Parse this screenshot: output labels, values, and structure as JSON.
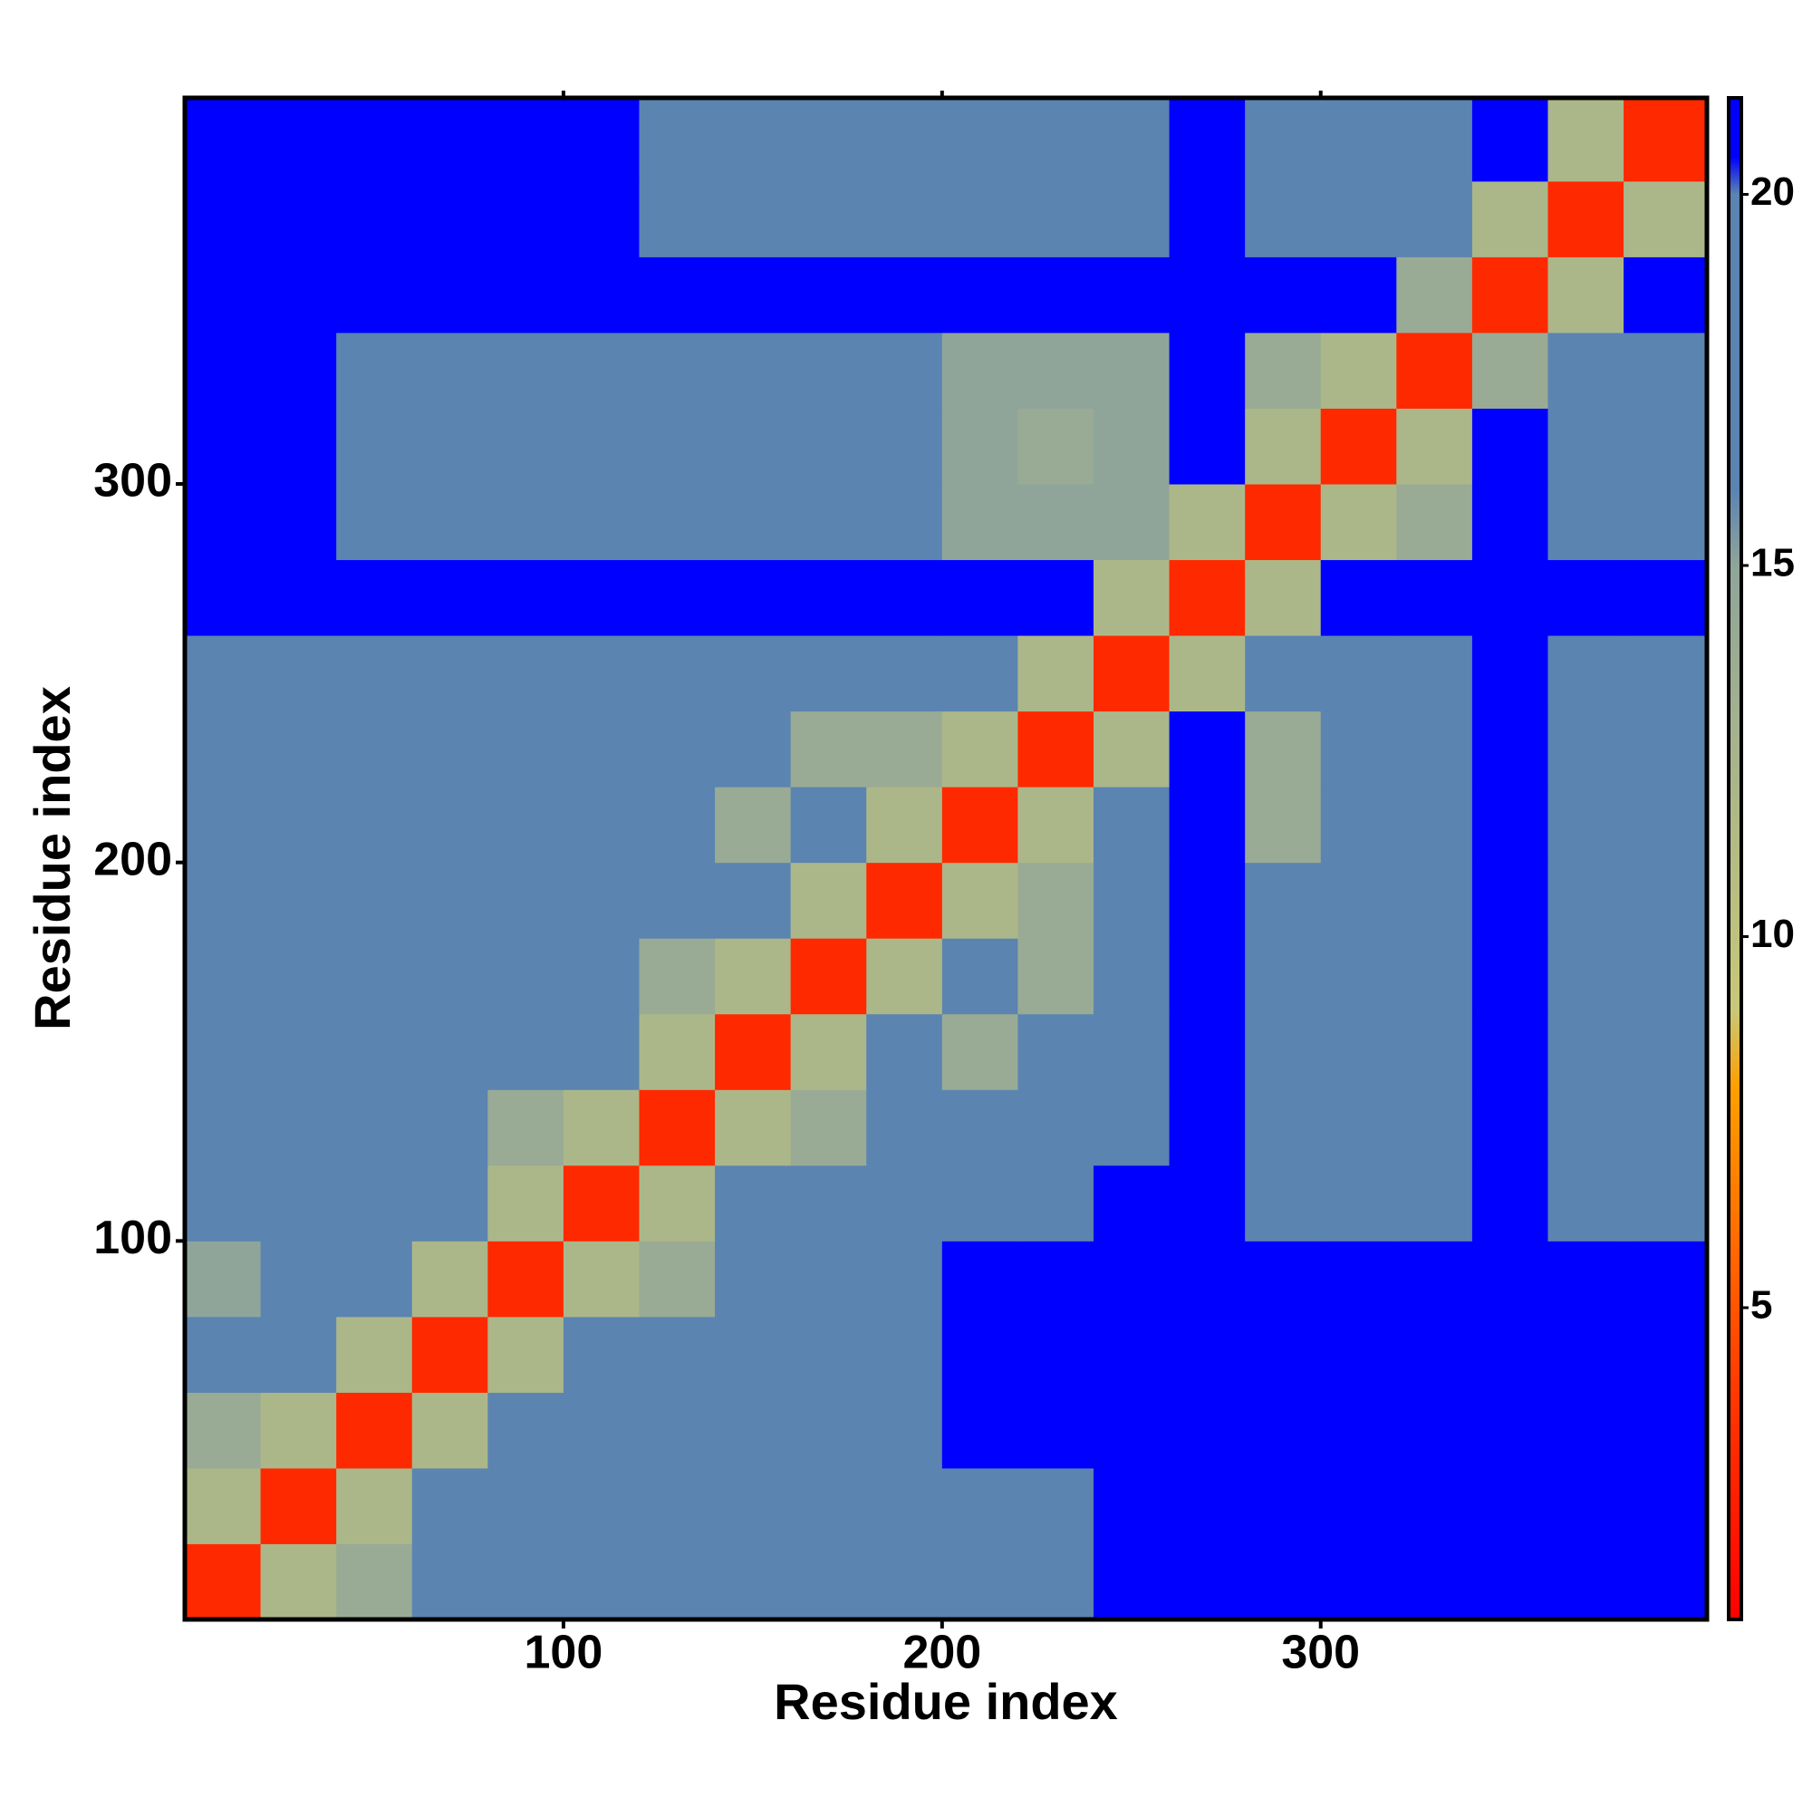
{
  "chart_data": {
    "type": "heatmap",
    "x_label": "Residue index",
    "y_label": "Residue index",
    "bins": [
      0,
      20,
      40,
      60,
      80,
      100,
      120,
      140,
      160,
      180,
      200,
      220,
      240,
      260,
      280,
      300,
      320,
      340,
      360,
      380,
      402
    ],
    "xlim": [
      0,
      402
    ],
    "ylim": [
      0,
      402
    ],
    "xticks": [
      100,
      200,
      300
    ],
    "yticks": [
      100,
      200,
      300
    ],
    "clim": [
      0.8,
      21.3
    ],
    "cticks": [
      5,
      10,
      15,
      20
    ],
    "colorscale": [
      [
        0.8,
        "#ff0000"
      ],
      [
        4,
        "#ff3c00"
      ],
      [
        8,
        "#ffa000"
      ],
      [
        9,
        "#c8c878"
      ],
      [
        15,
        "#8fa59a"
      ],
      [
        16,
        "#5b84b1"
      ],
      [
        20,
        "#5b84b1"
      ],
      [
        20.5,
        "#0000ff"
      ],
      [
        21.3,
        "#0000ff"
      ]
    ],
    "values": [
      [
        3,
        12,
        14,
        17,
        17,
        17,
        17,
        17,
        20,
        20,
        20,
        20,
        21,
        21,
        21,
        21,
        21,
        21,
        21,
        21
      ],
      [
        12,
        3,
        12,
        17,
        17,
        17,
        17,
        17,
        20,
        20,
        20,
        20,
        21,
        21,
        21,
        21,
        21,
        21,
        21,
        21
      ],
      [
        14,
        12,
        3,
        12,
        17,
        17,
        17,
        17,
        17,
        17,
        21,
        21,
        21,
        21,
        21,
        21,
        21,
        21,
        21,
        21
      ],
      [
        17,
        17,
        12,
        3,
        12,
        17,
        17,
        17,
        17,
        17,
        21,
        21,
        21,
        21,
        21,
        21,
        21,
        21,
        21,
        21
      ],
      [
        15,
        17,
        17,
        12,
        3,
        12,
        14,
        17,
        17,
        17,
        21,
        21,
        21,
        21,
        21,
        21,
        21,
        21,
        21,
        21
      ],
      [
        17,
        17,
        17,
        17,
        12,
        3,
        12,
        17,
        17,
        17,
        17,
        17,
        21,
        21,
        17,
        17,
        17,
        21,
        19,
        19
      ],
      [
        17,
        17,
        17,
        17,
        14,
        12,
        3,
        12,
        14,
        17,
        17,
        17,
        17,
        21,
        17,
        17,
        17,
        21,
        19,
        19
      ],
      [
        17,
        17,
        17,
        17,
        17,
        17,
        12,
        3,
        12,
        17,
        14,
        17,
        17,
        21,
        17,
        17,
        17,
        21,
        19,
        19
      ],
      [
        17,
        17,
        17,
        17,
        17,
        17,
        14,
        12,
        3,
        12,
        17,
        14,
        17,
        21,
        17,
        17,
        17,
        21,
        19,
        19
      ],
      [
        17,
        17,
        17,
        17,
        17,
        17,
        17,
        17,
        12,
        3,
        12,
        14,
        17,
        21,
        17,
        17,
        17,
        21,
        19,
        19
      ],
      [
        19,
        17,
        17,
        17,
        17,
        17,
        17,
        14,
        17,
        12,
        3,
        12,
        17,
        21,
        14,
        17,
        17,
        21,
        19,
        19
      ],
      [
        19,
        17,
        17,
        17,
        17,
        17,
        17,
        17,
        14,
        14,
        12,
        3,
        12,
        21,
        14,
        17,
        17,
        21,
        19,
        19
      ],
      [
        19,
        17,
        17,
        17,
        17,
        17,
        17,
        17,
        17,
        17,
        17,
        12,
        3,
        12,
        17,
        17,
        17,
        21,
        19,
        19
      ],
      [
        21,
        21,
        21,
        21,
        21,
        21,
        21,
        21,
        21,
        21,
        21,
        21,
        12,
        3,
        12,
        21,
        21,
        21,
        21,
        21
      ],
      [
        21,
        21,
        19,
        19,
        19,
        19,
        19,
        17,
        17,
        17,
        15,
        15,
        15,
        12,
        3,
        12,
        14,
        21,
        16,
        16
      ],
      [
        21,
        21,
        19,
        19,
        19,
        19,
        19,
        17,
        17,
        17,
        15,
        14,
        15,
        21,
        12,
        3,
        12,
        21,
        16,
        16
      ],
      [
        21,
        21,
        19,
        19,
        19,
        19,
        19,
        17,
        17,
        17,
        15,
        15,
        15,
        21,
        14,
        12,
        3,
        14,
        16,
        16
      ],
      [
        21,
        21,
        21,
        21,
        21,
        21,
        21,
        21,
        21,
        21,
        21,
        21,
        21,
        21,
        21,
        21,
        14,
        3,
        12,
        21
      ],
      [
        21,
        21,
        21,
        21,
        21,
        21,
        20,
        20,
        20,
        20,
        20,
        20,
        20,
        21,
        16,
        16,
        16,
        12,
        3,
        12
      ],
      [
        21,
        21,
        21,
        21,
        21,
        21,
        20,
        20,
        20,
        20,
        20,
        20,
        20,
        21,
        16,
        16,
        16,
        21,
        12,
        3
      ]
    ]
  }
}
